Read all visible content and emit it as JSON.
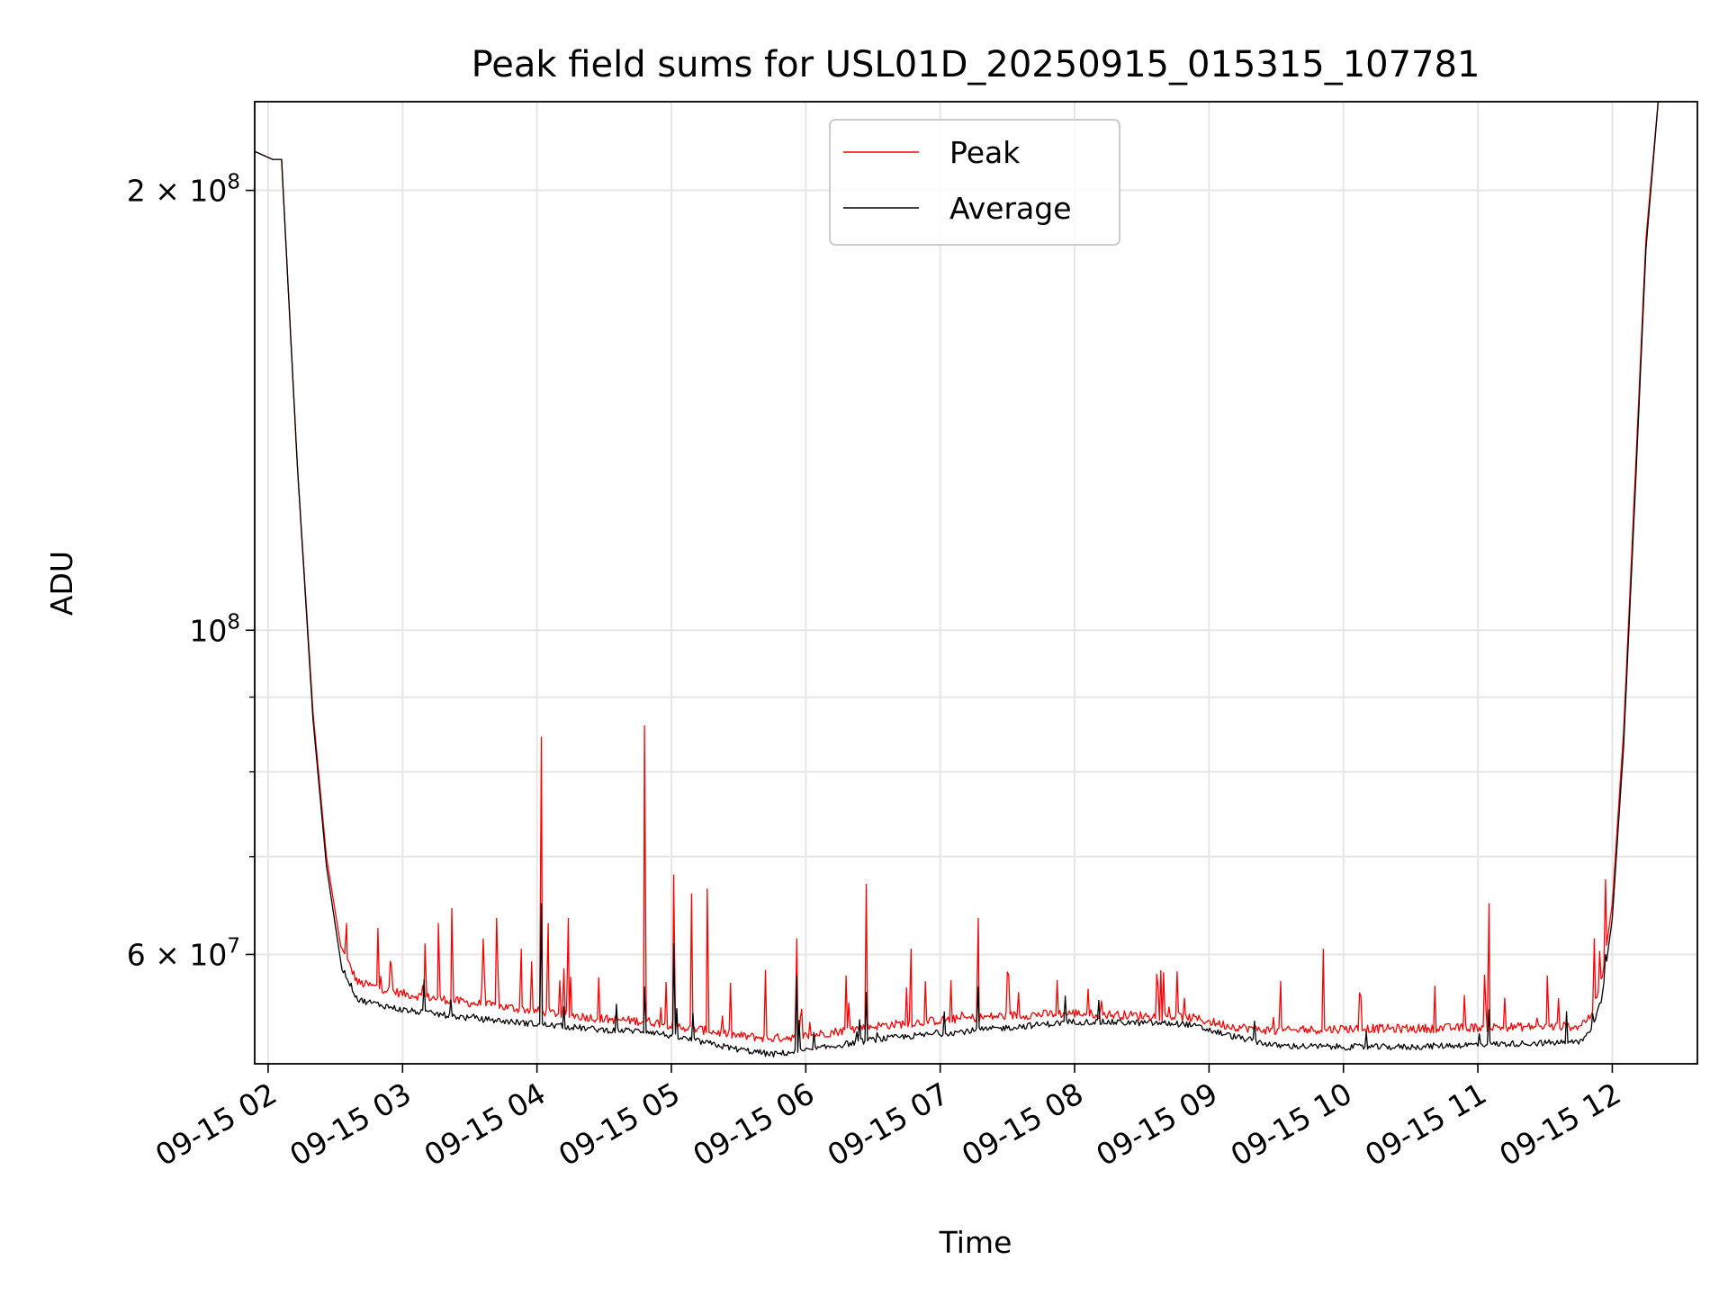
{
  "chart_data": {
    "type": "line",
    "title": "Peak field sums for USL01D_20250915_015315_107781",
    "xlabel": "Time",
    "ylabel": "ADU",
    "yscale": "log",
    "ylim": [
      50500000,
      230000000
    ],
    "xlim": [
      "2025-09-15 01:54",
      "2025-09-15 12:38"
    ],
    "grid": true,
    "legend_position": "top-center",
    "x_ticks": [
      "09-15 02",
      "09-15 03",
      "09-15 04",
      "09-15 05",
      "09-15 06",
      "09-15 07",
      "09-15 08",
      "09-15 09",
      "09-15 10",
      "09-15 11",
      "09-15 12"
    ],
    "y_ticks": [
      {
        "value": 60000000,
        "base": "6 × 10",
        "exp": "7"
      },
      {
        "value": 100000000,
        "base": "10",
        "exp": "8"
      },
      {
        "value": 200000000,
        "base": "2 × 10",
        "exp": "8"
      }
    ],
    "y_minor_ticks": [
      70000000,
      80000000,
      90000000
    ],
    "series": [
      {
        "name": "Peak",
        "color": "#ff0000",
        "base": [
          [
            "2025-09-15 01:53",
            213000000
          ],
          [
            "2025-09-15 02:02",
            210000000
          ],
          [
            "2025-09-15 02:06",
            210000000
          ],
          [
            "2025-09-15 02:13",
            130000000
          ],
          [
            "2025-09-15 02:20",
            88000000
          ],
          [
            "2025-09-15 02:26",
            70000000
          ],
          [
            "2025-09-15 02:33",
            60000000
          ],
          [
            "2025-09-15 02:40",
            57000000
          ],
          [
            "2025-09-15 03:00",
            56000000
          ],
          [
            "2025-09-15 03:30",
            55200000
          ],
          [
            "2025-09-15 04:00",
            54500000
          ],
          [
            "2025-09-15 04:30",
            53800000
          ],
          [
            "2025-09-15 04:50",
            53600000
          ],
          [
            "2025-09-15 05:00",
            53300000
          ],
          [
            "2025-09-15 05:30",
            52400000
          ],
          [
            "2025-09-15 05:45",
            52200000
          ],
          [
            "2025-09-15 06:00",
            52400000
          ],
          [
            "2025-09-15 06:30",
            53200000
          ],
          [
            "2025-09-15 07:00",
            53700000
          ],
          [
            "2025-09-15 07:30",
            54100000
          ],
          [
            "2025-09-15 08:00",
            54300000
          ],
          [
            "2025-09-15 08:30",
            54100000
          ],
          [
            "2025-09-15 08:50",
            54000000
          ],
          [
            "2025-09-15 09:10",
            53200000
          ],
          [
            "2025-09-15 09:30",
            52800000
          ],
          [
            "2025-09-15 10:00",
            53000000
          ],
          [
            "2025-09-15 10:30",
            53000000
          ],
          [
            "2025-09-15 11:00",
            53100000
          ],
          [
            "2025-09-15 11:45",
            53200000
          ],
          [
            "2025-09-15 11:50",
            54000000
          ],
          [
            "2025-09-15 11:55",
            57000000
          ],
          [
            "2025-09-15 12:00",
            65000000
          ],
          [
            "2025-09-15 12:05",
            85000000
          ],
          [
            "2025-09-15 12:10",
            125000000
          ],
          [
            "2025-09-15 12:15",
            185000000
          ],
          [
            "2025-09-15 12:21",
            235000000
          ]
        ],
        "spikes": [
          [
            "2025-09-15 02:35",
            63000000
          ],
          [
            "2025-09-15 02:49",
            62500000
          ],
          [
            "2025-09-15 02:55",
            59000000
          ],
          [
            "2025-09-15 03:10",
            61000000
          ],
          [
            "2025-09-15 03:16",
            63000000
          ],
          [
            "2025-09-15 03:22",
            64500000
          ],
          [
            "2025-09-15 03:36",
            61500000
          ],
          [
            "2025-09-15 03:42",
            63500000
          ],
          [
            "2025-09-15 03:53",
            60500000
          ],
          [
            "2025-09-15 04:02",
            84500000
          ],
          [
            "2025-09-15 04:05",
            63000000
          ],
          [
            "2025-09-15 04:14",
            63500000
          ],
          [
            "2025-09-15 04:48",
            86000000
          ],
          [
            "2025-09-15 05:01",
            68000000
          ],
          [
            "2025-09-15 05:09",
            66000000
          ],
          [
            "2025-09-15 05:16",
            66500000
          ],
          [
            "2025-09-15 05:42",
            58500000
          ],
          [
            "2025-09-15 05:56",
            61500000
          ],
          [
            "2025-09-15 06:18",
            58000000
          ],
          [
            "2025-09-15 06:27",
            67000000
          ],
          [
            "2025-09-15 06:47",
            60500000
          ],
          [
            "2025-09-15 07:17",
            63500000
          ],
          [
            "2025-09-15 07:35",
            56500000
          ],
          [
            "2025-09-15 08:49",
            56000000
          ],
          [
            "2025-09-15 09:32",
            57500000
          ],
          [
            "2025-09-15 09:51",
            60500000
          ],
          [
            "2025-09-15 11:05",
            65000000
          ],
          [
            "2025-09-15 11:31",
            58000000
          ],
          [
            "2025-09-15 11:57",
            67500000
          ],
          [
            "2025-09-15 11:52",
            61500000
          ]
        ]
      },
      {
        "name": "Average",
        "color": "#000000",
        "base": [
          [
            "2025-09-15 01:53",
            213000000
          ],
          [
            "2025-09-15 02:02",
            210000000
          ],
          [
            "2025-09-15 02:06",
            210000000
          ],
          [
            "2025-09-15 02:13",
            130000000
          ],
          [
            "2025-09-15 02:20",
            87000000
          ],
          [
            "2025-09-15 02:26",
            69000000
          ],
          [
            "2025-09-15 02:33",
            58500000
          ],
          [
            "2025-09-15 02:40",
            55600000
          ],
          [
            "2025-09-15 03:00",
            54700000
          ],
          [
            "2025-09-15 03:30",
            54000000
          ],
          [
            "2025-09-15 04:00",
            53500000
          ],
          [
            "2025-09-15 04:30",
            53000000
          ],
          [
            "2025-09-15 04:50",
            52900000
          ],
          [
            "2025-09-15 05:00",
            52500000
          ],
          [
            "2025-09-15 05:30",
            51400000
          ],
          [
            "2025-09-15 05:45",
            51000000
          ],
          [
            "2025-09-15 06:00",
            51300000
          ],
          [
            "2025-09-15 06:30",
            52200000
          ],
          [
            "2025-09-15 07:00",
            52700000
          ],
          [
            "2025-09-15 07:30",
            53200000
          ],
          [
            "2025-09-15 08:00",
            53700000
          ],
          [
            "2025-09-15 08:30",
            53600000
          ],
          [
            "2025-09-15 08:50",
            53500000
          ],
          [
            "2025-09-15 09:10",
            52500000
          ],
          [
            "2025-09-15 09:30",
            51700000
          ],
          [
            "2025-09-15 10:00",
            51600000
          ],
          [
            "2025-09-15 10:30",
            51600000
          ],
          [
            "2025-09-15 11:00",
            51800000
          ],
          [
            "2025-09-15 11:45",
            52000000
          ],
          [
            "2025-09-15 11:50",
            52800000
          ],
          [
            "2025-09-15 11:55",
            55500000
          ],
          [
            "2025-09-15 12:00",
            63500000
          ],
          [
            "2025-09-15 12:05",
            83000000
          ],
          [
            "2025-09-15 12:10",
            122000000
          ],
          [
            "2025-09-15 12:15",
            182000000
          ],
          [
            "2025-09-15 12:21",
            235000000
          ]
        ],
        "spikes": [
          [
            "2025-09-15 04:02",
            65000000
          ],
          [
            "2025-09-15 04:48",
            57000000
          ],
          [
            "2025-09-15 05:01",
            61000000
          ],
          [
            "2025-09-15 05:56",
            58000000
          ],
          [
            "2025-09-15 06:27",
            56500000
          ],
          [
            "2025-09-15 07:17",
            57000000
          ],
          [
            "2025-09-15 11:05",
            55000000
          ],
          [
            "2025-09-15 11:57",
            60000000
          ]
        ]
      }
    ]
  }
}
